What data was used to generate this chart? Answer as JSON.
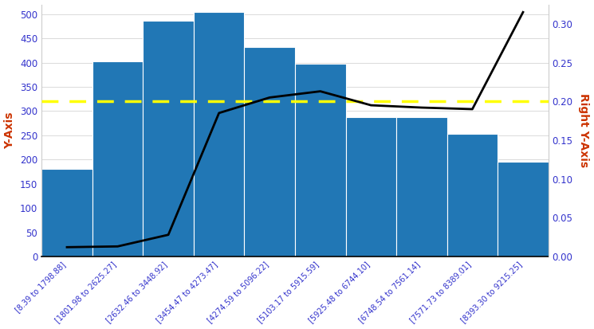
{
  "categories": [
    "[8.39 to 1798.88]",
    "[1801.98 to 2625.27]",
    "[2632.46 to 3448.92]",
    "[3454.47 to 4273.47]",
    "[4274.59 to 5096.22]",
    "[5103.17 to 5915.59]",
    "[5925.48 to 6744.10]",
    "[6748.54 to 7561.14]",
    "[7571.73 to 8389.01]",
    "[8393.30 to 9215.25]"
  ],
  "bar_values": [
    180,
    402,
    487,
    505,
    432,
    397,
    288,
    287,
    253,
    195
  ],
  "bar_color": "#2177b5",
  "line_values": [
    0.012,
    0.013,
    0.028,
    0.185,
    0.205,
    0.213,
    0.195,
    0.192,
    0.19,
    0.315
  ],
  "line_color": "#000000",
  "hline_value": 0.2,
  "hline_color": "#ffff00",
  "hline_style": "--",
  "hline_linewidth": 2.5,
  "ylabel_left": "Y-Axis",
  "ylabel_right": "Right Y-Axis",
  "ylim_left": [
    0,
    520
  ],
  "ylim_right": [
    0,
    0.325
  ],
  "background_color": "#ffffff",
  "line_linewidth": 2.0,
  "tick_label_color": "#3333cc",
  "axis_label_color": "#cc3300",
  "grid_color": "#cccccc",
  "right_yticks": [
    0.0,
    0.05,
    0.1,
    0.15,
    0.2,
    0.25,
    0.3
  ],
  "left_yticks": [
    0,
    50,
    100,
    150,
    200,
    250,
    300,
    350,
    400,
    450,
    500
  ],
  "figwidth": 7.45,
  "figheight": 4.13,
  "dpi": 100
}
